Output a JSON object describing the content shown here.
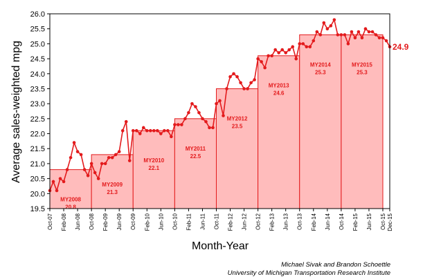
{
  "chart_data": {
    "type": "line",
    "xlabel": "Month-Year",
    "ylabel": "Average sales-weighted mpg",
    "ylim": [
      19.5,
      26.0
    ],
    "yticks": [
      19.5,
      20.0,
      20.5,
      21.0,
      21.5,
      22.0,
      22.5,
      23.0,
      23.5,
      24.0,
      24.5,
      25.0,
      25.5,
      26.0
    ],
    "x_start": "Oct-07",
    "x_end": "Dec-15",
    "x_tick_labels": [
      "Oct-07",
      "Feb-08",
      "Jun-08",
      "Oct-08",
      "Feb-09",
      "Jun-09",
      "Oct-09",
      "Feb-10",
      "Jun-10",
      "Oct-10",
      "Feb-11",
      "Jun-11",
      "Oct-11",
      "Feb-12",
      "Jun-12",
      "Oct-12",
      "Feb-13",
      "Jun-13",
      "Oct-13",
      "Feb-14",
      "Jun-14",
      "Oct-14",
      "Feb-15",
      "Jun-15",
      "Oct-15",
      "Dec-15"
    ],
    "grid": false,
    "monthly_mpg": [
      20.1,
      20.4,
      20.1,
      20.5,
      20.4,
      20.8,
      21.2,
      21.7,
      21.4,
      21.3,
      20.8,
      20.6,
      21.0,
      20.7,
      20.5,
      21.0,
      21.0,
      21.2,
      21.2,
      21.3,
      21.4,
      22.1,
      22.4,
      21.1,
      22.1,
      22.1,
      22.0,
      22.2,
      22.1,
      22.1,
      22.1,
      22.1,
      22.0,
      22.1,
      22.1,
      21.9,
      22.3,
      22.3,
      22.3,
      22.5,
      22.7,
      23.0,
      22.9,
      22.7,
      22.5,
      22.4,
      22.2,
      22.2,
      23.0,
      23.1,
      22.6,
      23.5,
      23.9,
      24.0,
      23.9,
      23.7,
      23.5,
      23.5,
      23.7,
      23.8,
      24.5,
      24.4,
      24.2,
      24.6,
      24.6,
      24.8,
      24.7,
      24.8,
      24.7,
      24.8,
      24.9,
      24.5,
      25.0,
      25.0,
      24.9,
      24.9,
      25.1,
      25.4,
      25.3,
      25.7,
      25.5,
      25.6,
      25.8,
      25.3,
      25.3,
      25.3,
      25.0,
      25.4,
      25.2,
      25.4,
      25.2,
      25.5,
      25.4,
      25.4,
      25.3,
      25.2,
      25.2,
      25.1,
      24.9
    ],
    "model_years": [
      {
        "label": "MY2008",
        "value": "20.8",
        "mpg": 20.8
      },
      {
        "label": "MY2009",
        "value": "21.3",
        "mpg": 21.3
      },
      {
        "label": "MY2010",
        "value": "22.1",
        "mpg": 22.1
      },
      {
        "label": "MY2011",
        "value": "22.5",
        "mpg": 22.5
      },
      {
        "label": "MY2012",
        "value": "23.5",
        "mpg": 23.5
      },
      {
        "label": "MY2013",
        "value": "24.6",
        "mpg": 24.6
      },
      {
        "label": "MY2014",
        "value": "25.3",
        "mpg": 25.3
      },
      {
        "label": "MY2015",
        "value": "25.3",
        "mpg": 25.3
      }
    ],
    "end_label": "24.9",
    "line_color": "#e31a1c",
    "bar_fill": "#ffbcbc",
    "bar_stroke": "#e31a1c"
  },
  "credits": {
    "line1": "Michael Sivak and Brandon Schoettle",
    "line2": "University of Michigan Transportation Research Institute"
  }
}
